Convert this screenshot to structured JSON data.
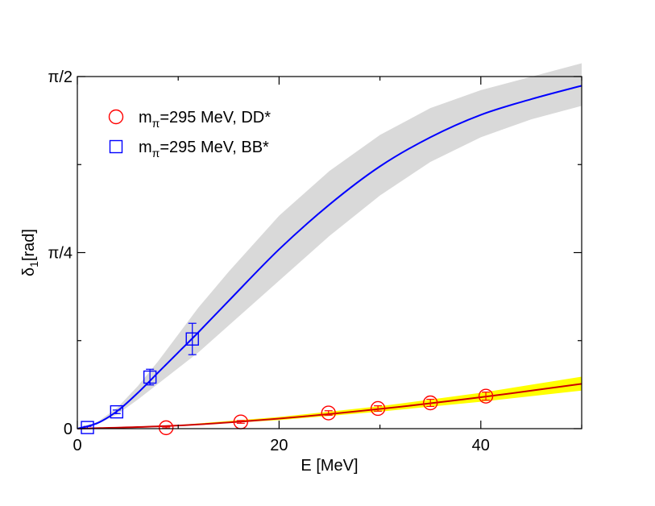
{
  "chart_data": {
    "type": "scatter",
    "xlabel": "E [MeV]",
    "ylabel": "δ",
    "ylabel_sub": "1",
    "ylabel_unit": "[rad]",
    "xlim": [
      0,
      50
    ],
    "ylim": [
      0,
      1.5708
    ],
    "x_ticks": [
      {
        "value": 0,
        "label": "0"
      },
      {
        "value": 20,
        "label": "20"
      },
      {
        "value": 40,
        "label": "40"
      }
    ],
    "y_ticks": [
      {
        "value": 0,
        "label": "0"
      },
      {
        "value": 0.7854,
        "label": "π/4"
      },
      {
        "value": 1.5708,
        "label": "π/2"
      }
    ],
    "legend": [
      {
        "prefix": "m",
        "sub": "π",
        "suffix": "=295 MeV, DD*",
        "marker": "circle",
        "color": "#ff0000"
      },
      {
        "prefix": "m",
        "sub": "π",
        "suffix": "=295 MeV, BB*",
        "marker": "square",
        "color": "#0000ff"
      }
    ],
    "series": [
      {
        "name": "DD*",
        "marker": "circle",
        "color": "#ff0000",
        "points": [
          {
            "x": 8.8,
            "y": 0.004,
            "err": 0.003
          },
          {
            "x": 16.2,
            "y": 0.03,
            "err": 0.006
          },
          {
            "x": 24.9,
            "y": 0.07,
            "err": 0.01
          },
          {
            "x": 29.8,
            "y": 0.09,
            "err": 0.012
          },
          {
            "x": 35.0,
            "y": 0.115,
            "err": 0.016
          },
          {
            "x": 40.5,
            "y": 0.145,
            "err": 0.018
          }
        ],
        "fit": {
          "x": [
            0,
            10,
            20,
            30,
            40,
            50
          ],
          "y": [
            0,
            0.014,
            0.045,
            0.088,
            0.14,
            0.2
          ]
        },
        "band": {
          "x": [
            0,
            10,
            20,
            30,
            40,
            50
          ],
          "lo": [
            0,
            0.012,
            0.038,
            0.076,
            0.12,
            0.17
          ],
          "hi": [
            0,
            0.016,
            0.052,
            0.1,
            0.16,
            0.232
          ]
        },
        "band_color": "#ffff00",
        "fit_color": "#cc0000"
      },
      {
        "name": "BB*",
        "marker": "square",
        "color": "#0000ff",
        "points": [
          {
            "x": 1.0,
            "y": 0.005,
            "err": 0.005
          },
          {
            "x": 3.9,
            "y": 0.075,
            "err": 0.008
          },
          {
            "x": 7.2,
            "y": 0.23,
            "err": 0.035
          },
          {
            "x": 11.4,
            "y": 0.4,
            "err": 0.07
          }
        ],
        "fit": {
          "x": [
            0,
            2,
            4,
            6,
            8,
            10,
            12,
            15,
            20,
            25,
            30,
            35,
            40,
            45,
            50
          ],
          "y": [
            0,
            0.025,
            0.08,
            0.16,
            0.25,
            0.34,
            0.43,
            0.57,
            0.8,
            1.0,
            1.17,
            1.3,
            1.4,
            1.47,
            1.53
          ]
        },
        "band": {
          "x": [
            0,
            2,
            4,
            6,
            8,
            10,
            12,
            15,
            20,
            25,
            30,
            35,
            40,
            45,
            50
          ],
          "lo": [
            0,
            0.02,
            0.065,
            0.13,
            0.2,
            0.27,
            0.34,
            0.46,
            0.66,
            0.86,
            1.04,
            1.19,
            1.3,
            1.38,
            1.44
          ],
          "hi": [
            0,
            0.03,
            0.095,
            0.19,
            0.3,
            0.42,
            0.54,
            0.7,
            0.95,
            1.15,
            1.31,
            1.43,
            1.51,
            1.57,
            1.63
          ]
        },
        "band_color": "#d9d9d9",
        "fit_color": "#0000ff"
      }
    ]
  }
}
